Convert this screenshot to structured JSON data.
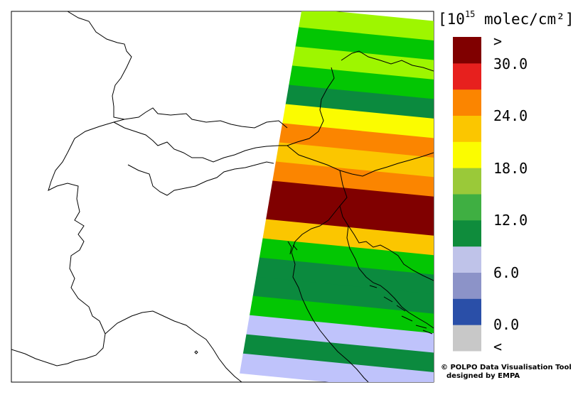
{
  "legend": {
    "unit_prefix": "[10",
    "unit_exp": "15",
    "unit_suffix": " molec/cm²]",
    "colors": [
      "#c8c8c8",
      "#2a4fa8",
      "#8c93c8",
      "#bfc3e9",
      "#0f8c3c",
      "#3faf42",
      "#9ac939",
      "#fbfc00",
      "#fbc600",
      "#fb8500",
      "#e7201e",
      "#800000"
    ],
    "labels": {
      "gt": ">",
      "v30": "30.0",
      "v24": "24.0",
      "v18": "18.0",
      "v12": "12.0",
      "v6": "6.0",
      "v0": "0.0",
      "lt": "<"
    }
  },
  "swath": {
    "band_colors": [
      "#9ef600",
      "#03c603",
      "#9ef600",
      "#03c603",
      "#0b8a3e",
      "#fbfc00",
      "#fb8500",
      "#fbc600",
      "#fb8500",
      "#800000",
      "#800000",
      "#fbc600",
      "#03c603",
      "#0b8a3e",
      "#0b8a3e",
      "#03c603",
      "#bfc3fb",
      "#0b8a3e",
      "#bfc3fb"
    ]
  },
  "credit": {
    "line1": "© POLPO Data Visualisation Tool",
    "line2": "designed by EMPA"
  }
}
